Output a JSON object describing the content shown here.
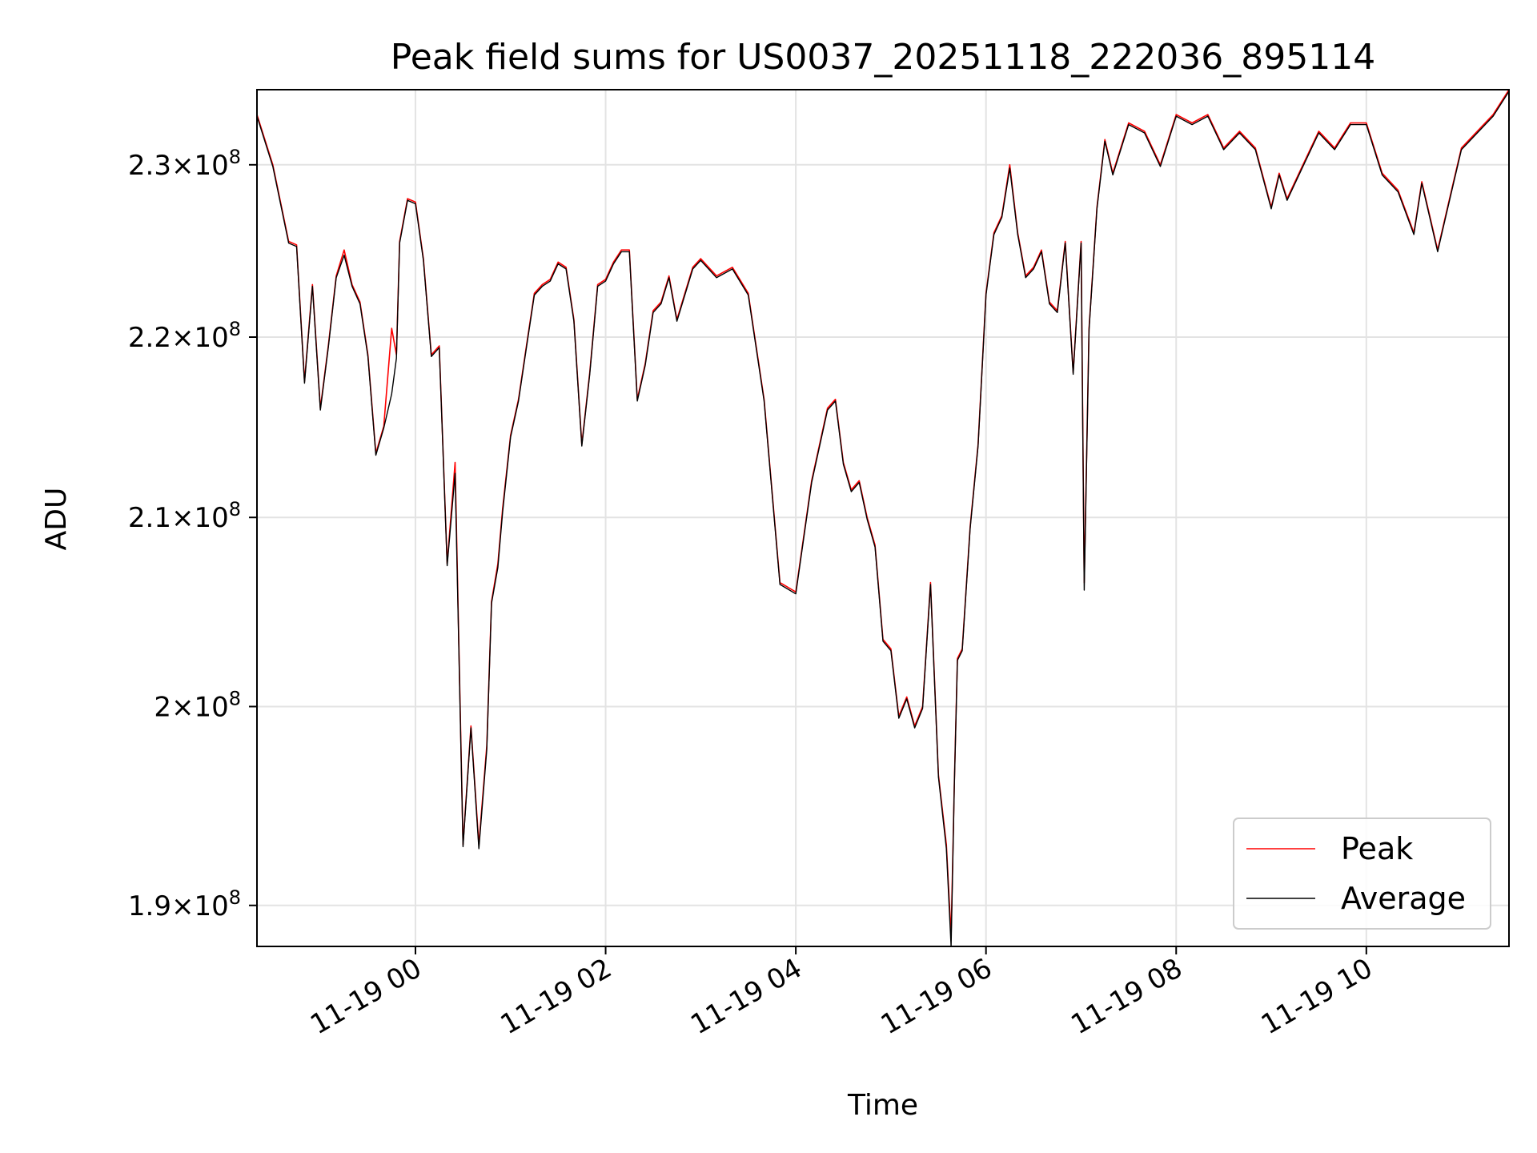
{
  "chart_data": {
    "type": "line",
    "title": "Peak field sums for US0037_20251118_222036_895114",
    "xlabel": "Time",
    "ylabel": "ADU",
    "y_scale": "log",
    "grid": true,
    "legend_position": "lower-right",
    "xlim": [
      "2025-11-18 22:20",
      "2025-11-19 11:30"
    ],
    "ylim": [
      188000000,
      234500000
    ],
    "x_ticks": [
      "2025-11-19 00:00",
      "2025-11-19 02:00",
      "2025-11-19 04:00",
      "2025-11-19 06:00",
      "2025-11-19 08:00",
      "2025-11-19 10:00"
    ],
    "x_tick_labels": [
      "11-19 00",
      "11-19 02",
      "11-19 04",
      "11-19 06",
      "11-19 08",
      "11-19 10"
    ],
    "y_ticks": [
      190000000,
      200000000,
      210000000,
      220000000,
      230000000
    ],
    "y_tick_labels": [
      {
        "mantissa": "1.9",
        "exponent": "8"
      },
      {
        "mantissa": "2",
        "exponent": "8"
      },
      {
        "mantissa": "2.1",
        "exponent": "8"
      },
      {
        "mantissa": "2.2",
        "exponent": "8"
      },
      {
        "mantissa": "2.3",
        "exponent": "8"
      }
    ],
    "series": [
      {
        "name": "Peak",
        "color": "#ff0000",
        "x": [
          "2025-11-18 22:20",
          "2025-11-18 22:30",
          "2025-11-18 22:40",
          "2025-11-18 22:45",
          "2025-11-18 22:50",
          "2025-11-18 22:55",
          "2025-11-18 23:00",
          "2025-11-18 23:05",
          "2025-11-18 23:10",
          "2025-11-18 23:15",
          "2025-11-18 23:20",
          "2025-11-18 23:25",
          "2025-11-18 23:30",
          "2025-11-18 23:35",
          "2025-11-18 23:40",
          "2025-11-18 23:45",
          "2025-11-18 23:48",
          "2025-11-18 23:50",
          "2025-11-18 23:55",
          "2025-11-19 00:00",
          "2025-11-19 00:05",
          "2025-11-19 00:10",
          "2025-11-19 00:15",
          "2025-11-19 00:20",
          "2025-11-19 00:25",
          "2025-11-19 00:30",
          "2025-11-19 00:35",
          "2025-11-19 00:40",
          "2025-11-19 00:45",
          "2025-11-19 00:48",
          "2025-11-19 00:52",
          "2025-11-19 00:55",
          "2025-11-19 01:00",
          "2025-11-19 01:05",
          "2025-11-19 01:10",
          "2025-11-19 01:15",
          "2025-11-19 01:20",
          "2025-11-19 01:25",
          "2025-11-19 01:30",
          "2025-11-19 01:35",
          "2025-11-19 01:40",
          "2025-11-19 01:45",
          "2025-11-19 01:50",
          "2025-11-19 01:55",
          "2025-11-19 02:00",
          "2025-11-19 02:05",
          "2025-11-19 02:10",
          "2025-11-19 02:15",
          "2025-11-19 02:20",
          "2025-11-19 02:25",
          "2025-11-19 02:30",
          "2025-11-19 02:35",
          "2025-11-19 02:40",
          "2025-11-19 02:45",
          "2025-11-19 02:50",
          "2025-11-19 02:55",
          "2025-11-19 03:00",
          "2025-11-19 03:10",
          "2025-11-19 03:20",
          "2025-11-19 03:30",
          "2025-11-19 03:40",
          "2025-11-19 03:50",
          "2025-11-19 04:00",
          "2025-11-19 04:10",
          "2025-11-19 04:20",
          "2025-11-19 04:25",
          "2025-11-19 04:30",
          "2025-11-19 04:35",
          "2025-11-19 04:40",
          "2025-11-19 04:45",
          "2025-11-19 04:50",
          "2025-11-19 04:55",
          "2025-11-19 05:00",
          "2025-11-19 05:05",
          "2025-11-19 05:10",
          "2025-11-19 05:15",
          "2025-11-19 05:20",
          "2025-11-19 05:25",
          "2025-11-19 05:30",
          "2025-11-19 05:35",
          "2025-11-19 05:38",
          "2025-11-19 05:40",
          "2025-11-19 05:42",
          "2025-11-19 05:45",
          "2025-11-19 05:50",
          "2025-11-19 05:55",
          "2025-11-19 06:00",
          "2025-11-19 06:05",
          "2025-11-19 06:10",
          "2025-11-19 06:15",
          "2025-11-19 06:20",
          "2025-11-19 06:25",
          "2025-11-19 06:30",
          "2025-11-19 06:35",
          "2025-11-19 06:40",
          "2025-11-19 06:45",
          "2025-11-19 06:50",
          "2025-11-19 06:55",
          "2025-11-19 07:00",
          "2025-11-19 07:02",
          "2025-11-19 07:05",
          "2025-11-19 07:10",
          "2025-11-19 07:15",
          "2025-11-19 07:20",
          "2025-11-19 07:30",
          "2025-11-19 07:40",
          "2025-11-19 07:50",
          "2025-11-19 08:00",
          "2025-11-19 08:10",
          "2025-11-19 08:20",
          "2025-11-19 08:30",
          "2025-11-19 08:40",
          "2025-11-19 08:50",
          "2025-11-19 09:00",
          "2025-11-19 09:05",
          "2025-11-19 09:10",
          "2025-11-19 09:20",
          "2025-11-19 09:30",
          "2025-11-19 09:40",
          "2025-11-19 09:50",
          "2025-11-19 10:00",
          "2025-11-19 10:10",
          "2025-11-19 10:20",
          "2025-11-19 10:30",
          "2025-11-19 10:35",
          "2025-11-19 10:40",
          "2025-11-19 10:45",
          "2025-11-19 10:50",
          "2025-11-19 10:55",
          "2025-11-19 11:00",
          "2025-11-19 11:10",
          "2025-11-19 11:20",
          "2025-11-19 11:30"
        ],
        "values": [
          233000000,
          230000000,
          225500000,
          225300000,
          217500000,
          223000000,
          216000000,
          219500000,
          223500000,
          225000000,
          223000000,
          222000000,
          219000000,
          213500000,
          215000000,
          220500000,
          219000000,
          225500000,
          228000000,
          227800000,
          224500000,
          219000000,
          219500000,
          207500000,
          213000000,
          193000000,
          199000000,
          193000000,
          198000000,
          205500000,
          207500000,
          210500000,
          214500000,
          216500000,
          219500000,
          222500000,
          223000000,
          223300000,
          224300000,
          224000000,
          221000000,
          214000000,
          218000000,
          223000000,
          223300000,
          224300000,
          225000000,
          225000000,
          216500000,
          218500000,
          221500000,
          222000000,
          223500000,
          221000000,
          222500000,
          224000000,
          224500000,
          223500000,
          224000000,
          222500000,
          216500000,
          206500000,
          206000000,
          212000000,
          216000000,
          216500000,
          213000000,
          211500000,
          212000000,
          210000000,
          208500000,
          203500000,
          203000000,
          199500000,
          200500000,
          199000000,
          200000000,
          206500000,
          196500000,
          193000000,
          188500000,
          196000000,
          202500000,
          203000000,
          209500000,
          214000000,
          222500000,
          226000000,
          227000000,
          230000000,
          226000000,
          223500000,
          224000000,
          225000000,
          222000000,
          221500000,
          225500000,
          218000000,
          225500000,
          206500000,
          220500000,
          227500000,
          231500000,
          229500000,
          232500000,
          232000000,
          230000000,
          233000000,
          232500000,
          233000000,
          231000000,
          232000000,
          231000000,
          227500000,
          229500000,
          228000000,
          230000000,
          232000000,
          231000000,
          232500000,
          232500000,
          229500000,
          228500000,
          226000000,
          229000000,
          227000000,
          225000000,
          227000000,
          229000000,
          231000000,
          232000000,
          233000000,
          234500000
        ]
      },
      {
        "name": "Average",
        "color": "#000000",
        "x": [
          "2025-11-18 22:20",
          "2025-11-18 22:30",
          "2025-11-18 22:40",
          "2025-11-18 22:45",
          "2025-11-18 22:50",
          "2025-11-18 22:55",
          "2025-11-18 23:00",
          "2025-11-18 23:05",
          "2025-11-18 23:10",
          "2025-11-18 23:15",
          "2025-11-18 23:20",
          "2025-11-18 23:25",
          "2025-11-18 23:30",
          "2025-11-18 23:35",
          "2025-11-18 23:40",
          "2025-11-18 23:45",
          "2025-11-18 23:48",
          "2025-11-18 23:50",
          "2025-11-18 23:55",
          "2025-11-19 00:00",
          "2025-11-19 00:05",
          "2025-11-19 00:10",
          "2025-11-19 00:15",
          "2025-11-19 00:20",
          "2025-11-19 00:25",
          "2025-11-19 00:30",
          "2025-11-19 00:35",
          "2025-11-19 00:40",
          "2025-11-19 00:45",
          "2025-11-19 00:48",
          "2025-11-19 00:52",
          "2025-11-19 00:55",
          "2025-11-19 01:00",
          "2025-11-19 01:05",
          "2025-11-19 01:10",
          "2025-11-19 01:15",
          "2025-11-19 01:20",
          "2025-11-19 01:25",
          "2025-11-19 01:30",
          "2025-11-19 01:35",
          "2025-11-19 01:40",
          "2025-11-19 01:45",
          "2025-11-19 01:50",
          "2025-11-19 01:55",
          "2025-11-19 02:00",
          "2025-11-19 02:05",
          "2025-11-19 02:10",
          "2025-11-19 02:15",
          "2025-11-19 02:20",
          "2025-11-19 02:25",
          "2025-11-19 02:30",
          "2025-11-19 02:35",
          "2025-11-19 02:40",
          "2025-11-19 02:45",
          "2025-11-19 02:50",
          "2025-11-19 02:55",
          "2025-11-19 03:00",
          "2025-11-19 03:10",
          "2025-11-19 03:20",
          "2025-11-19 03:30",
          "2025-11-19 03:40",
          "2025-11-19 03:50",
          "2025-11-19 04:00",
          "2025-11-19 04:10",
          "2025-11-19 04:20",
          "2025-11-19 04:25",
          "2025-11-19 04:30",
          "2025-11-19 04:35",
          "2025-11-19 04:40",
          "2025-11-19 04:45",
          "2025-11-19 04:50",
          "2025-11-19 04:55",
          "2025-11-19 05:00",
          "2025-11-19 05:05",
          "2025-11-19 05:10",
          "2025-11-19 05:15",
          "2025-11-19 05:20",
          "2025-11-19 05:25",
          "2025-11-19 05:30",
          "2025-11-19 05:35",
          "2025-11-19 05:38",
          "2025-11-19 05:40",
          "2025-11-19 05:42",
          "2025-11-19 05:45",
          "2025-11-19 05:50",
          "2025-11-19 05:55",
          "2025-11-19 06:00",
          "2025-11-19 06:05",
          "2025-11-19 06:10",
          "2025-11-19 06:15",
          "2025-11-19 06:20",
          "2025-11-19 06:25",
          "2025-11-19 06:30",
          "2025-11-19 06:35",
          "2025-11-19 06:40",
          "2025-11-19 06:45",
          "2025-11-19 06:50",
          "2025-11-19 06:55",
          "2025-11-19 07:00",
          "2025-11-19 07:02",
          "2025-11-19 07:05",
          "2025-11-19 07:10",
          "2025-11-19 07:15",
          "2025-11-19 07:20",
          "2025-11-19 07:30",
          "2025-11-19 07:40",
          "2025-11-19 07:50",
          "2025-11-19 08:00",
          "2025-11-19 08:10",
          "2025-11-19 08:20",
          "2025-11-19 08:30",
          "2025-11-19 08:40",
          "2025-11-19 08:50",
          "2025-11-19 09:00",
          "2025-11-19 09:05",
          "2025-11-19 09:10",
          "2025-11-19 09:20",
          "2025-11-19 09:30",
          "2025-11-19 09:40",
          "2025-11-19 09:50",
          "2025-11-19 10:00",
          "2025-11-19 10:10",
          "2025-11-19 10:20",
          "2025-11-19 10:30",
          "2025-11-19 10:35",
          "2025-11-19 10:40",
          "2025-11-19 10:45",
          "2025-11-19 10:50",
          "2025-11-19 10:55",
          "2025-11-19 11:00",
          "2025-11-19 11:10",
          "2025-11-19 11:20",
          "2025-11-19 11:30"
        ],
        "values": [
          232900000,
          229900000,
          225400000,
          225200000,
          217400000,
          222900000,
          215900000,
          219400000,
          223400000,
          224700000,
          222900000,
          221900000,
          218900000,
          213400000,
          214900000,
          216800000,
          218800000,
          225400000,
          227900000,
          227700000,
          224400000,
          218900000,
          219400000,
          207400000,
          212400000,
          192900000,
          198900000,
          192800000,
          197800000,
          205400000,
          207300000,
          210300000,
          214400000,
          216400000,
          219400000,
          222400000,
          222900000,
          223200000,
          224200000,
          223900000,
          220900000,
          213900000,
          217900000,
          222900000,
          223200000,
          224200000,
          224900000,
          224900000,
          216400000,
          218400000,
          221400000,
          221900000,
          223400000,
          220900000,
          222400000,
          223900000,
          224400000,
          223400000,
          223900000,
          222400000,
          216400000,
          206400000,
          205900000,
          211900000,
          215900000,
          216400000,
          212900000,
          211400000,
          211900000,
          209900000,
          208400000,
          203400000,
          202900000,
          199400000,
          200400000,
          198900000,
          199900000,
          206400000,
          196400000,
          192800000,
          188000000,
          195900000,
          202400000,
          202900000,
          209400000,
          213900000,
          222400000,
          225900000,
          226900000,
          229800000,
          225900000,
          223400000,
          223900000,
          224900000,
          221900000,
          221400000,
          225400000,
          217900000,
          225400000,
          206100000,
          220400000,
          227400000,
          231400000,
          229400000,
          232400000,
          231900000,
          229900000,
          232900000,
          232400000,
          232900000,
          230900000,
          231900000,
          230900000,
          227400000,
          229400000,
          227900000,
          229900000,
          231900000,
          230900000,
          232400000,
          232400000,
          229400000,
          228400000,
          225900000,
          228900000,
          226900000,
          224900000,
          226900000,
          228900000,
          230900000,
          231900000,
          232900000,
          234400000
        ]
      }
    ]
  }
}
